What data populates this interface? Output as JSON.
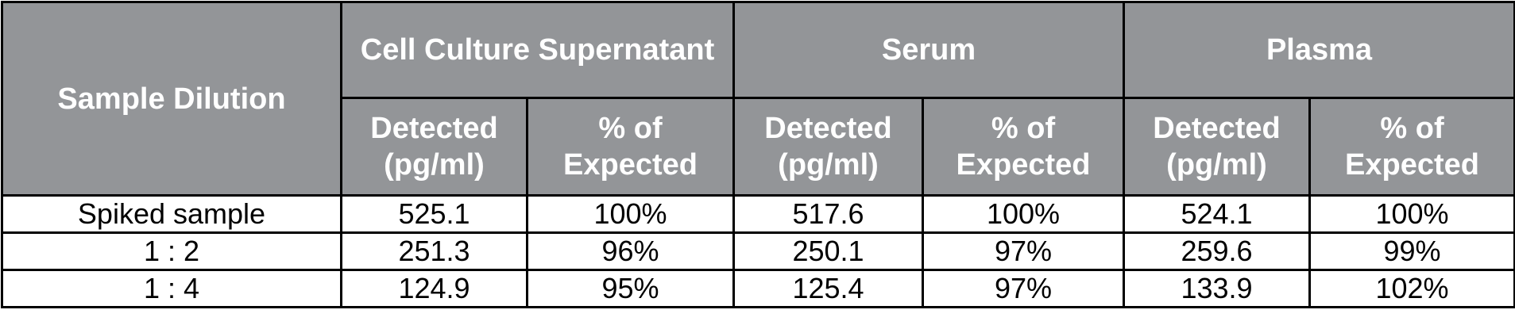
{
  "header": {
    "sample_dilution": "Sample Dilution",
    "groups": [
      {
        "name": "Cell Culture Supernatant",
        "columns": [
          "Detected (pg/ml)",
          "% of Expected"
        ]
      },
      {
        "name": "Serum",
        "columns": [
          "Detected (pg/ml)",
          "% of Expected"
        ]
      },
      {
        "name": "Plasma",
        "columns": [
          "Detected (pg/ml)",
          "% of Expected"
        ]
      }
    ]
  },
  "rows": [
    [
      "Spiked sample",
      "525.1",
      "100%",
      "517.6",
      "100%",
      "524.1",
      "100%"
    ],
    [
      "1 : 2",
      "251.3",
      "96%",
      "250.1",
      "97%",
      "259.6",
      "99%"
    ],
    [
      "1 : 4",
      "124.9",
      "95%",
      "125.4",
      "97%",
      "133.9",
      "102%"
    ]
  ]
}
